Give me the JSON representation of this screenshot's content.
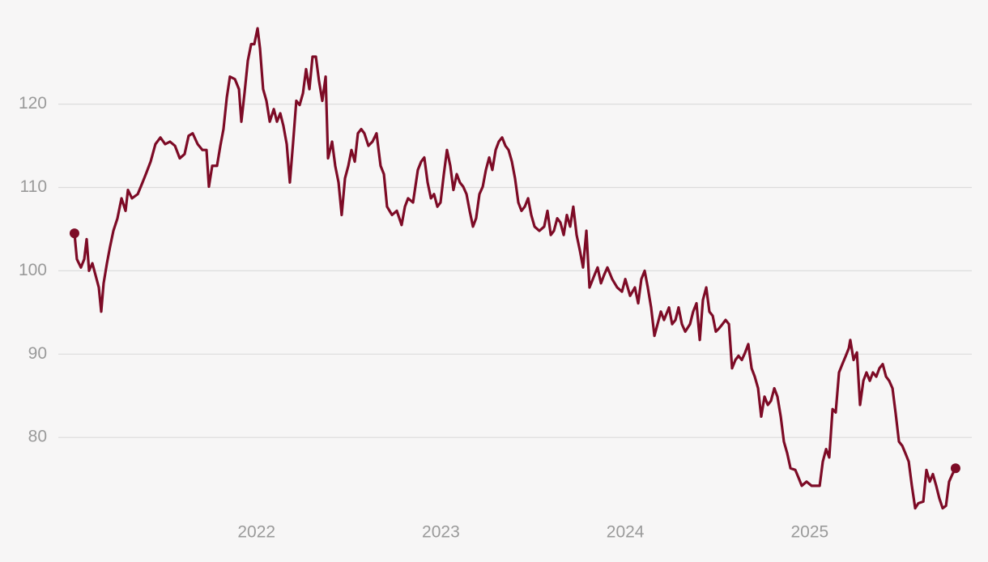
{
  "chart_data": {
    "type": "line",
    "color": "#7d0b26",
    "grid": true,
    "xlim": [
      2021.0,
      2025.8
    ],
    "xticks": [
      2022,
      2023,
      2024,
      2025
    ],
    "ylim": [
      70.3,
      132.5
    ],
    "yticks": [
      80,
      90,
      100,
      110,
      120
    ],
    "x": [
      2021.013,
      2021.026,
      2021.048,
      2021.066,
      2021.079,
      2021.092,
      2021.11,
      2021.127,
      2021.145,
      2021.158,
      2021.171,
      2021.189,
      2021.206,
      2021.224,
      2021.246,
      2021.268,
      2021.29,
      2021.303,
      2021.325,
      2021.356,
      2021.382,
      2021.4,
      2021.426,
      2021.452,
      2021.479,
      2021.505,
      2021.531,
      2021.558,
      2021.584,
      2021.61,
      2021.632,
      2021.654,
      2021.681,
      2021.707,
      2021.729,
      2021.742,
      2021.76,
      2021.786,
      2021.804,
      2021.821,
      2021.839,
      2021.856,
      2021.883,
      2021.905,
      2021.918,
      2021.935,
      2021.953,
      2021.971,
      2021.988,
      2022.006,
      2022.019,
      2022.036,
      2022.054,
      2022.072,
      2022.094,
      2022.111,
      2022.129,
      2022.146,
      2022.164,
      2022.181,
      2022.199,
      2022.216,
      2022.234,
      2022.252,
      2022.269,
      2022.287,
      2022.304,
      2022.322,
      2022.339,
      2022.357,
      2022.375,
      2022.388,
      2022.41,
      2022.427,
      2022.445,
      2022.462,
      2022.48,
      2022.498,
      2022.515,
      2022.533,
      2022.55,
      2022.568,
      2022.585,
      2022.607,
      2022.629,
      2022.651,
      2022.673,
      2022.691,
      2022.708,
      2022.735,
      2022.761,
      2022.787,
      2022.805,
      2022.822,
      2022.849,
      2022.875,
      2022.893,
      2022.91,
      2022.928,
      2022.946,
      2022.963,
      2022.981,
      2022.998,
      2023.016,
      2023.033,
      2023.051,
      2023.068,
      2023.086,
      2023.103,
      2023.121,
      2023.139,
      2023.156,
      2023.174,
      2023.191,
      2023.209,
      2023.227,
      2023.244,
      2023.262,
      2023.279,
      2023.297,
      2023.314,
      2023.332,
      2023.35,
      2023.367,
      2023.385,
      2023.402,
      2023.42,
      2023.437,
      2023.455,
      2023.473,
      2023.49,
      2023.508,
      2023.534,
      2023.56,
      2023.578,
      2023.596,
      2023.613,
      2023.631,
      2023.648,
      2023.666,
      2023.683,
      2023.701,
      2023.718,
      2023.736,
      2023.754,
      2023.771,
      2023.789,
      2023.806,
      2023.833,
      2023.85,
      2023.868,
      2023.885,
      2023.903,
      2023.929,
      2023.956,
      2023.982,
      2024.0,
      2024.026,
      2024.052,
      2024.07,
      2024.087,
      2024.105,
      2024.122,
      2024.14,
      2024.158,
      2024.175,
      2024.193,
      2024.21,
      2024.237,
      2024.254,
      2024.272,
      2024.289,
      2024.307,
      2024.325,
      2024.351,
      2024.368,
      2024.386,
      2024.404,
      2024.421,
      2024.439,
      2024.456,
      2024.474,
      2024.491,
      2024.509,
      2024.527,
      2024.544,
      2024.562,
      2024.579,
      2024.597,
      2024.614,
      2024.632,
      2024.65,
      2024.667,
      2024.685,
      2024.702,
      2024.72,
      2024.737,
      2024.755,
      2024.773,
      2024.79,
      2024.808,
      2024.825,
      2024.843,
      2024.86,
      2024.878,
      2024.896,
      2024.922,
      2024.939,
      2024.957,
      2024.983,
      2025.01,
      2025.036,
      2025.054,
      2025.071,
      2025.089,
      2025.106,
      2025.124,
      2025.141,
      2025.159,
      2025.177,
      2025.194,
      2025.212,
      2025.22,
      2025.238,
      2025.256,
      2025.273,
      2025.291,
      2025.308,
      2025.326,
      2025.343,
      2025.361,
      2025.378,
      2025.396,
      2025.414,
      2025.431,
      2025.449,
      2025.466,
      2025.484,
      2025.502,
      2025.519,
      2025.537,
      2025.554,
      2025.572,
      2025.589,
      2025.616,
      2025.633,
      2025.651,
      2025.668,
      2025.686,
      2025.703,
      2025.721,
      2025.739,
      2025.756,
      2025.774,
      2025.791
    ],
    "values": [
      104.5,
      101.4,
      100.4,
      101.4,
      103.8,
      100,
      100.9,
      99.5,
      98,
      95.1,
      98.5,
      100.9,
      102.9,
      104.8,
      106.3,
      108.7,
      107.2,
      109.7,
      108.7,
      109.2,
      110.6,
      111.6,
      113.1,
      115.2,
      116,
      115.2,
      115.5,
      115,
      113.5,
      114,
      116.2,
      116.5,
      115.2,
      114.5,
      114.5,
      110.1,
      112.6,
      112.6,
      115,
      117,
      120.8,
      123.3,
      123,
      121.8,
      117.9,
      121.3,
      125.2,
      127.2,
      127.2,
      129.1,
      126.7,
      121.8,
      120.4,
      117.9,
      119.4,
      117.9,
      118.9,
      117.4,
      115.2,
      110.6,
      115.5,
      120.4,
      119.9,
      121.3,
      124.2,
      121.8,
      125.7,
      125.7,
      122.8,
      120.4,
      123.3,
      113.5,
      115.5,
      112.6,
      110.6,
      106.7,
      111.1,
      112.6,
      114.5,
      113.1,
      116.5,
      117,
      116.5,
      115,
      115.5,
      116.5,
      112.6,
      111.6,
      107.7,
      106.7,
      107.2,
      105.5,
      107.7,
      108.7,
      108.2,
      112.1,
      113.1,
      113.6,
      110.6,
      108.7,
      109.2,
      107.7,
      108.2,
      111.6,
      114.5,
      112.6,
      109.7,
      111.6,
      110.6,
      110.1,
      109.2,
      107.2,
      105.3,
      106.3,
      109.2,
      110.1,
      112.1,
      113.6,
      112.1,
      114.5,
      115.5,
      116,
      115,
      114.5,
      113.1,
      111.1,
      108.2,
      107.2,
      107.7,
      108.7,
      106.7,
      105.3,
      104.8,
      105.3,
      107.2,
      104.3,
      104.8,
      106.3,
      105.8,
      104.3,
      106.7,
      105.3,
      107.7,
      104.3,
      102.4,
      100.4,
      104.8,
      98,
      99.5,
      100.4,
      98.5,
      99.5,
      100.4,
      99,
      98,
      97.5,
      99,
      97,
      98,
      96.1,
      99,
      100,
      98,
      95.6,
      92.2,
      93.6,
      95.1,
      94.1,
      95.6,
      93.6,
      94.1,
      95.6,
      93.6,
      92.7,
      93.6,
      95.1,
      96.1,
      91.7,
      96.5,
      98,
      95.1,
      94.6,
      92.7,
      93.1,
      93.6,
      94.1,
      93.6,
      88.3,
      89.3,
      89.8,
      89.3,
      90.2,
      91.2,
      88.3,
      87.3,
      85.9,
      82.5,
      84.9,
      83.9,
      84.4,
      85.9,
      84.9,
      82.5,
      79.5,
      78.1,
      76.3,
      76.1,
      75.2,
      74.2,
      74.7,
      74.2,
      74.2,
      74.2,
      77.1,
      78.6,
      77.6,
      83.4,
      83,
      87.8,
      88.8,
      89.7,
      90.7,
      91.7,
      89.3,
      90.2,
      83.9,
      86.8,
      87.8,
      86.8,
      87.8,
      87.3,
      88.3,
      88.8,
      87.3,
      86.8,
      85.9,
      82.9,
      79.5,
      79,
      78.1,
      77.1,
      74.2,
      71.5,
      72.1,
      72.3,
      76.1,
      74.7,
      75.6,
      74.2,
      72.7,
      71.5,
      71.8,
      74.7,
      75.6,
      76.3
    ]
  }
}
